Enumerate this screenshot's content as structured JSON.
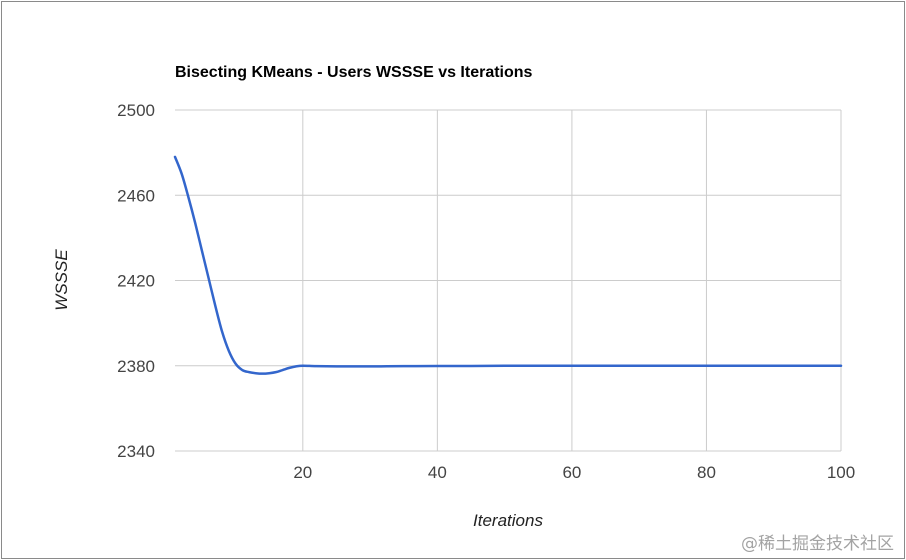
{
  "chart_data": {
    "type": "line",
    "title": "Bisecting KMeans - Users WSSSE vs Iterations",
    "xlabel": "Iterations",
    "ylabel": "WSSSE",
    "xlim": [
      1,
      100
    ],
    "ylim": [
      2340,
      2500
    ],
    "x_ticks": [
      20,
      40,
      60,
      80,
      100
    ],
    "y_ticks": [
      2340,
      2380,
      2420,
      2460,
      2500
    ],
    "grid": true,
    "legend": "none",
    "series": [
      {
        "color": "#3366cc",
        "x": [
          1,
          2,
          3,
          4,
          5,
          6,
          7,
          8,
          9,
          10,
          11,
          12,
          13,
          14,
          15,
          16,
          17,
          18,
          19,
          20,
          22,
          25,
          30,
          35,
          40,
          45,
          50,
          55,
          60,
          65,
          70,
          75,
          80,
          85,
          90,
          95,
          100
        ],
        "values": [
          2478,
          2470,
          2459,
          2447,
          2434,
          2421,
          2408,
          2396,
          2387,
          2381,
          2378,
          2377,
          2376.5,
          2376.3,
          2376.5,
          2377,
          2378,
          2379,
          2379.7,
          2380,
          2379.8,
          2379.7,
          2379.7,
          2379.8,
          2379.9,
          2379.9,
          2380,
          2380,
          2380,
          2380,
          2380,
          2380,
          2380,
          2380,
          2380,
          2380,
          2380
        ]
      }
    ]
  },
  "watermark": "@稀土掘金技术社区"
}
